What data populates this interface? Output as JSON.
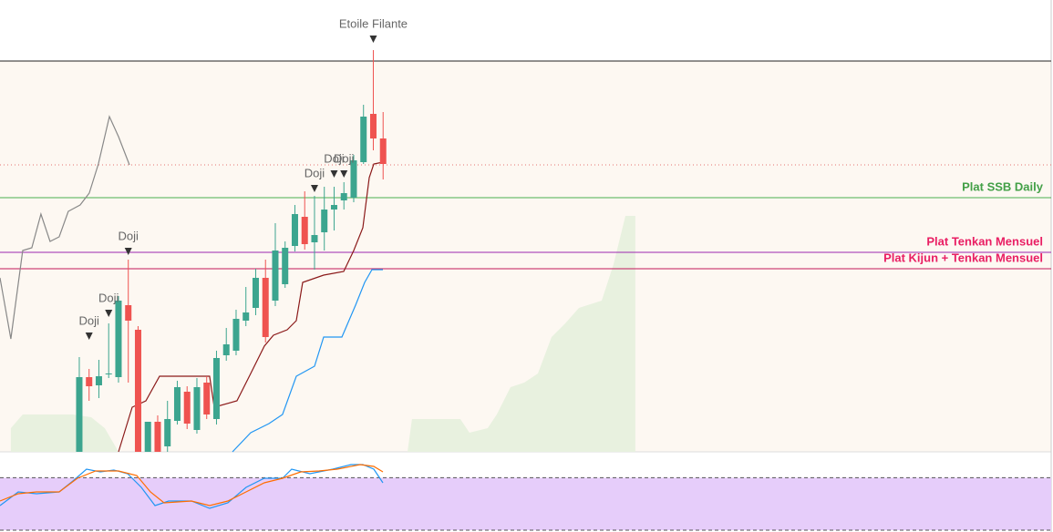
{
  "chart_data": {
    "type": "candlestick",
    "xlim": [
      -8.09,
      99.35
    ],
    "ylim": [
      0,
      496
    ],
    "up_color": "#3ca58f",
    "down_color": "#ef5350",
    "candles": {
      "open": [
        0,
        82,
        73,
        85,
        82,
        161,
        134,
        0,
        33,
        6,
        34,
        66,
        24,
        76,
        36,
        106,
        111,
        144,
        158,
        191,
        166,
        184,
        226,
        258,
        230,
        241,
        266,
        276,
        279,
        318,
        371,
        344
      ],
      "high": [
        104,
        91,
        101,
        141,
        171,
        211,
        138,
        33,
        40,
        56,
        78,
        72,
        81,
        83,
        111,
        136,
        156,
        181,
        201,
        211,
        251,
        231,
        271,
        286,
        281,
        291,
        291,
        296,
        326,
        381,
        441,
        373
      ],
      "low": [
        0,
        56,
        59,
        81,
        76,
        76,
        0,
        0,
        0,
        0,
        30,
        25,
        20,
        36,
        30,
        100,
        106,
        138,
        150,
        120,
        160,
        180,
        220,
        222,
        200,
        221,
        243,
        266,
        274,
        316,
        331,
        299
      ],
      "close": [
        82,
        72,
        83,
        86,
        166,
        144,
        0,
        33,
        0,
        36,
        71,
        31,
        71,
        41,
        103,
        118,
        146,
        153,
        191,
        126,
        221,
        224,
        261,
        228,
        238,
        266,
        271,
        284,
        320,
        368,
        344,
        316
      ]
    },
    "cloud": {
      "color": "#e8f1df",
      "x": [
        -6.98,
        -5.77,
        -0.65,
        1.21,
        2.6,
        4.0,
        null,
        33.49,
        33.95,
        38.88,
        39.81,
        41.67,
        42.6,
        44.0,
        45.4,
        46.79,
        48.19,
        49.58,
        50.98,
        53.3,
        54.51,
        55.72,
        56.74,
        56.74
      ],
      "values": [
        26,
        41,
        41,
        38,
        26,
        0,
        null,
        0,
        36,
        36,
        21,
        26,
        41,
        71,
        76,
        86,
        126,
        141,
        158,
        166,
        206,
        259,
        259,
        0
      ]
    },
    "series": [
      {
        "color": "#888888",
        "x": [
          -8.09,
          -6.98,
          -5.77,
          -4.84,
          -3.91,
          -2.98,
          -2.05,
          -1.12,
          0.09,
          1.02,
          1.95,
          3.07,
          4.0,
          5.12
        ],
        "values": [
          191,
          124,
          221,
          224,
          261,
          231,
          236,
          264,
          271,
          284,
          316,
          368,
          346,
          315
        ]
      },
      {
        "color": "#8b1a1a",
        "x": [
          4.0,
          5.4,
          6.79,
          8.19,
          13.3,
          13.77,
          16.09,
          17.49,
          18.88,
          19.81,
          21.21,
          22.14,
          22.79,
          24.93,
          26.98,
          28.0,
          28.93,
          29.58,
          30.05,
          30.98
        ],
        "values": [
          0,
          49,
          56,
          83,
          83,
          49,
          56,
          86,
          116,
          128,
          134,
          144,
          186,
          194,
          198,
          221,
          246,
          301,
          316,
          318
        ]
      },
      {
        "color": "#2196f3",
        "x": [
          15.63,
          17.49,
          19.35,
          20.74,
          22.14,
          24.0,
          24.93,
          26.79,
          28.19,
          29.12,
          29.86,
          30.98
        ],
        "values": [
          0,
          21,
          31,
          41,
          83,
          94,
          126,
          126,
          161,
          186,
          200,
          200
        ]
      }
    ],
    "levels": [
      {
        "value": 429,
        "color": "#222222"
      },
      {
        "value": 315,
        "color": "#e57373",
        "dash": true
      },
      {
        "value": 279,
        "color": "#4caf50",
        "label": "Plat SSB Daily",
        "label_color": "#43a047"
      },
      {
        "value": 219,
        "color": "#9c27b0",
        "label": "Plat Tenkan Mensuel",
        "label_color": "#e91e63"
      },
      {
        "value": 201,
        "color": "#c2185b",
        "label": "Plat Kijun + Tenkan Mensuel",
        "label_color": "#e91e63"
      }
    ],
    "annotations": [
      {
        "text": "Etoile Filante",
        "x": 30,
        "y": 453
      },
      {
        "text": "Doji",
        "x": 1,
        "y": 127
      },
      {
        "text": "Doji",
        "x": 3,
        "y": 152
      },
      {
        "text": "Doji",
        "x": 5,
        "y": 220
      },
      {
        "text": "Doji",
        "x": 24,
        "y": 289
      },
      {
        "text": "Doji",
        "x": 26,
        "y": 305
      },
      {
        "text": "Doji",
        "x": 27,
        "y": 305
      }
    ],
    "oscillator": {
      "ylim": [
        0,
        100
      ],
      "level": 80,
      "band_color": "#e6cdfa",
      "series": [
        {
          "color": "#2196f3",
          "x": [
            -8.09,
            -6.23,
            -4.37,
            -2.05,
            -0.65,
            0.74,
            2.14,
            3.53,
            4.93,
            6.33,
            7.72,
            9.12,
            11.44,
            13.3,
            15.16,
            17.02,
            18.88,
            20.74,
            21.67,
            23.53,
            25.86,
            27.72,
            28.93,
            30.05,
            30.98
          ],
          "values": [
            37.5,
            58.3,
            55.6,
            58.3,
            75,
            93,
            88.9,
            91.7,
            86.1,
            65.3,
            37.5,
            44.4,
            44.4,
            33.3,
            41.7,
            65.3,
            79.2,
            79.2,
            93.1,
            86.1,
            93.1,
            100,
            100,
            93.1,
            72.2
          ]
        },
        {
          "color": "#ff6d00",
          "x": [
            -8.09,
            -6.23,
            -4.37,
            -2.05,
            -0.19,
            1.67,
            4.0,
            5.86,
            7.26,
            8.65,
            11.44,
            13.3,
            15.16,
            17.02,
            18.88,
            20.74,
            22.6,
            24.47,
            26.33,
            28.65,
            30.05,
            30.98
          ],
          "values": [
            44.4,
            55.6,
            58.3,
            58.3,
            79.2,
            90.3,
            90.3,
            83.3,
            58.3,
            41.7,
            44.4,
            37.5,
            44.4,
            58.3,
            72.2,
            79.2,
            88.9,
            90.3,
            93.1,
            100,
            97.2,
            88.9
          ]
        }
      ]
    }
  }
}
